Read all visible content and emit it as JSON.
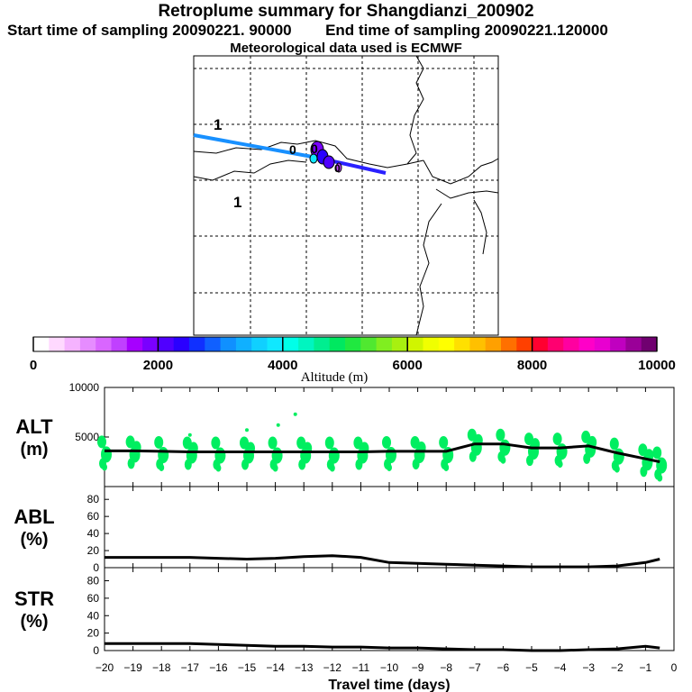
{
  "header": {
    "title": "Retroplume summary for Shangdianzi_200902",
    "start_label": "Start time of sampling 20090221. 90000",
    "end_label": "End time of sampling 20090221.120000",
    "met_label": "Meteorological data used is ECMWF"
  },
  "map": {
    "labels": [
      "1",
      "1"
    ],
    "cluster_labels": [
      "0",
      "0",
      "0"
    ]
  },
  "colorbar": {
    "title": "Altitude (m)",
    "ticks": [
      "0",
      "2000",
      "4000",
      "6000",
      "8000",
      "10000"
    ],
    "range": [
      0,
      10000
    ],
    "colors": [
      "#ffffff",
      "#ffd9ff",
      "#f5b3ff",
      "#e68cff",
      "#d966ff",
      "#c040ff",
      "#a600ff",
      "#7a00ff",
      "#5000ff",
      "#2a00ff",
      "#1030ff",
      "#1060ff",
      "#1090ff",
      "#10b0ff",
      "#10d0ff",
      "#10e8ff",
      "#00ffe8",
      "#00f5c0",
      "#00ee90",
      "#00e860",
      "#20e840",
      "#50e830",
      "#80ee20",
      "#a8f010",
      "#d0f500",
      "#f0ff00",
      "#ffff00",
      "#ffe000",
      "#ffc000",
      "#ffa000",
      "#ff7000",
      "#ff4000",
      "#ff0030",
      "#ff0070",
      "#ff00a0",
      "#ff00c8",
      "#e800d0",
      "#c000c0",
      "#9a0098",
      "#700070"
    ]
  },
  "chart_data": [
    {
      "type": "line",
      "panel": "ALT",
      "ylabel": "ALT\n(m)",
      "ylabel_line1": "ALT",
      "ylabel_line2": "(m)",
      "ylim": [
        0,
        10000
      ],
      "yticks": [
        "5000",
        "10000"
      ],
      "x": [
        -20,
        -19,
        -18,
        -17,
        -16,
        -15,
        -14,
        -13,
        -12,
        -11,
        -10,
        -9,
        -8,
        -7,
        -6,
        -5,
        -4,
        -3,
        -2,
        -1,
        -0.5
      ],
      "values": [
        3600,
        3600,
        3550,
        3500,
        3500,
        3500,
        3500,
        3500,
        3500,
        3500,
        3550,
        3550,
        3550,
        4300,
        4300,
        3900,
        3900,
        4100,
        3400,
        2800,
        2500
      ],
      "scatter_color": "#00ee60"
    },
    {
      "type": "line",
      "panel": "ABL",
      "ylabel_line1": "ABL",
      "ylabel_line2": "(%)",
      "ylim": [
        0,
        95
      ],
      "yticks": [
        "0",
        "20",
        "40",
        "60",
        "80"
      ],
      "x": [
        -20,
        -19,
        -18,
        -17,
        -16,
        -15,
        -14,
        -13,
        -12,
        -11,
        -10,
        -9,
        -8,
        -7,
        -6,
        -5,
        -4,
        -3,
        -2,
        -1,
        -0.5
      ],
      "values": [
        12,
        12,
        12,
        12,
        11,
        10,
        11,
        13,
        14,
        12,
        6,
        5,
        4,
        3,
        2,
        1,
        1,
        1,
        2,
        6,
        10
      ]
    },
    {
      "type": "line",
      "panel": "STR",
      "ylabel_line1": "STR",
      "ylabel_line2": "(%)",
      "ylim": [
        0,
        95
      ],
      "yticks": [
        "0",
        "20",
        "40",
        "60",
        "80"
      ],
      "x": [
        -20,
        -19,
        -18,
        -17,
        -16,
        -15,
        -14,
        -13,
        -12,
        -11,
        -10,
        -9,
        -8,
        -7,
        -6,
        -5,
        -4,
        -3,
        -2,
        -1,
        -0.5
      ],
      "values": [
        8,
        8,
        8,
        8,
        7,
        6,
        5,
        5,
        4,
        4,
        3,
        3,
        2,
        1,
        1,
        0,
        0,
        1,
        2,
        5,
        3
      ]
    }
  ],
  "xaxis": {
    "label": "Travel time (days)",
    "ticks": [
      "-20",
      "-19",
      "-18",
      "-17",
      "-16",
      "-15",
      "-14",
      "-13",
      "-12",
      "-11",
      "-10",
      "-9",
      "-8",
      "-7",
      "-6",
      "-5",
      "-4",
      "-3",
      "-2",
      "-1",
      "0"
    ],
    "range": [
      -20,
      0
    ]
  }
}
